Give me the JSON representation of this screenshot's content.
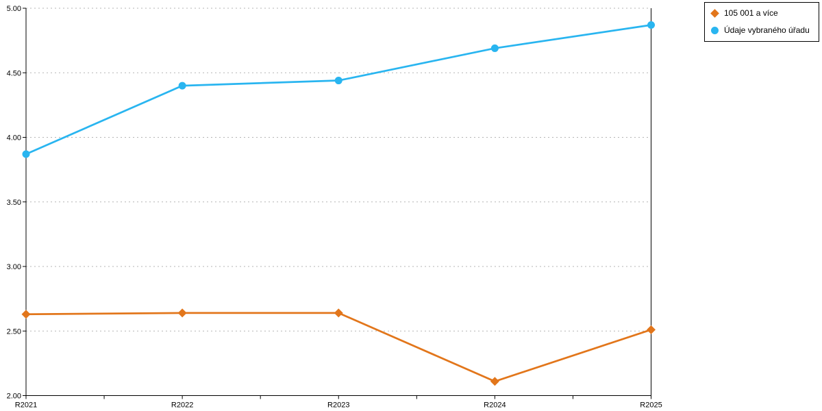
{
  "chart_data": {
    "type": "line",
    "title": "",
    "xlabel": "",
    "ylabel": "",
    "categories": [
      "R2021",
      "R2022",
      "R2023",
      "R2024",
      "R2025"
    ],
    "series": [
      {
        "name": "105 001 a více",
        "values": [
          2.63,
          2.64,
          2.64,
          2.11,
          2.51
        ],
        "color": "#e2761b",
        "marker": "diamond"
      },
      {
        "name": "Údaje vybraného úřadu",
        "values": [
          3.87,
          4.4,
          4.44,
          4.69,
          4.87
        ],
        "color": "#29b5f0",
        "marker": "circle"
      }
    ],
    "ylim": [
      2.0,
      5.0
    ],
    "ytick_step": 0.5,
    "ytick_labels": [
      "2.00",
      "2.50",
      "3.00",
      "3.50",
      "4.00",
      "4.50",
      "5.00"
    ],
    "grid": "horizontal-dashed",
    "gridline_color": "#b3b3b3",
    "axis_color": "#000000",
    "legend_position": "top-right"
  },
  "legend": {
    "items": [
      {
        "label": "105 001 a více",
        "color": "#e2761b",
        "marker": "diamond"
      },
      {
        "label": "Údaje vybraného úřadu",
        "color": "#29b5f0",
        "marker": "circle"
      }
    ]
  }
}
